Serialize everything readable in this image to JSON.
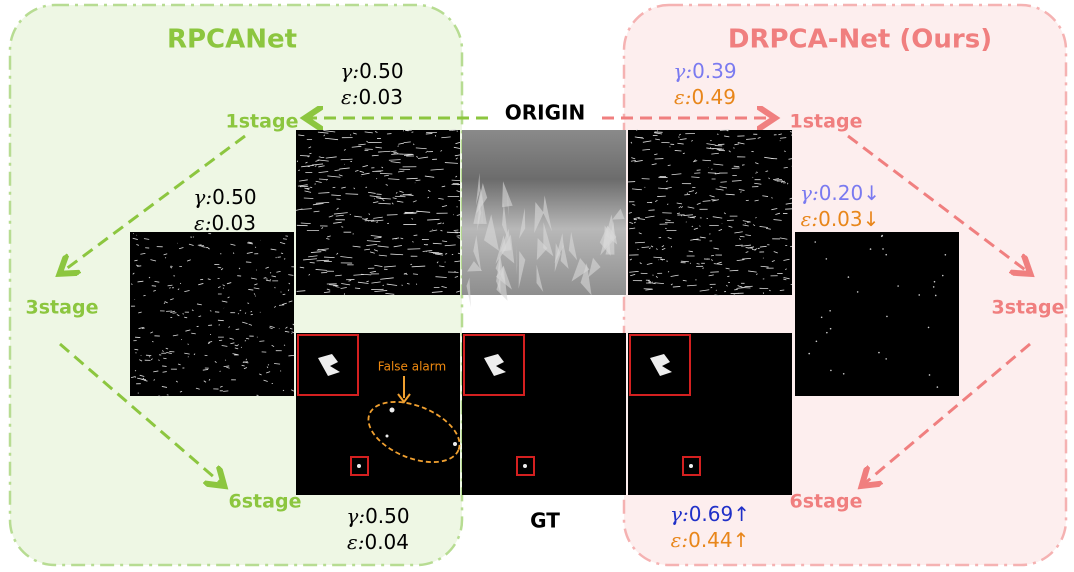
{
  "origin_label": "ORIGIN",
  "gt_label": "GT",
  "false_alarm": "False alarm",
  "left": {
    "title": "RPCANet",
    "stages": [
      "1stage",
      "3stage",
      "6stage"
    ],
    "params": [
      {
        "gamma_symbol": "γ:",
        "gamma": "0.50",
        "epsilon_symbol": "ε:",
        "epsilon": "0.03"
      },
      {
        "gamma_symbol": "γ:",
        "gamma": "0.50",
        "epsilon_symbol": "ε:",
        "epsilon": "0.03"
      },
      {
        "gamma_symbol": "γ:",
        "gamma": "0.50",
        "epsilon_symbol": "ε:",
        "epsilon": "0.04"
      }
    ]
  },
  "right": {
    "title": "DRPCA-Net (Ours)",
    "stages": [
      "1stage",
      "3stage",
      "6stage"
    ],
    "params": [
      {
        "gamma_symbol": "γ:",
        "gamma": "0.39",
        "epsilon_symbol": "ε:",
        "epsilon": "0.49"
      },
      {
        "gamma_symbol": "γ:",
        "gamma": "0.20",
        "gamma_trend": "↓",
        "epsilon_symbol": "ε:",
        "epsilon": "0.03",
        "epsilon_trend": "↓"
      },
      {
        "gamma_symbol": "γ:",
        "gamma": "0.69",
        "gamma_trend": "↑",
        "epsilon_symbol": "ε:",
        "epsilon": "0.44",
        "epsilon_trend": "↑"
      }
    ]
  }
}
